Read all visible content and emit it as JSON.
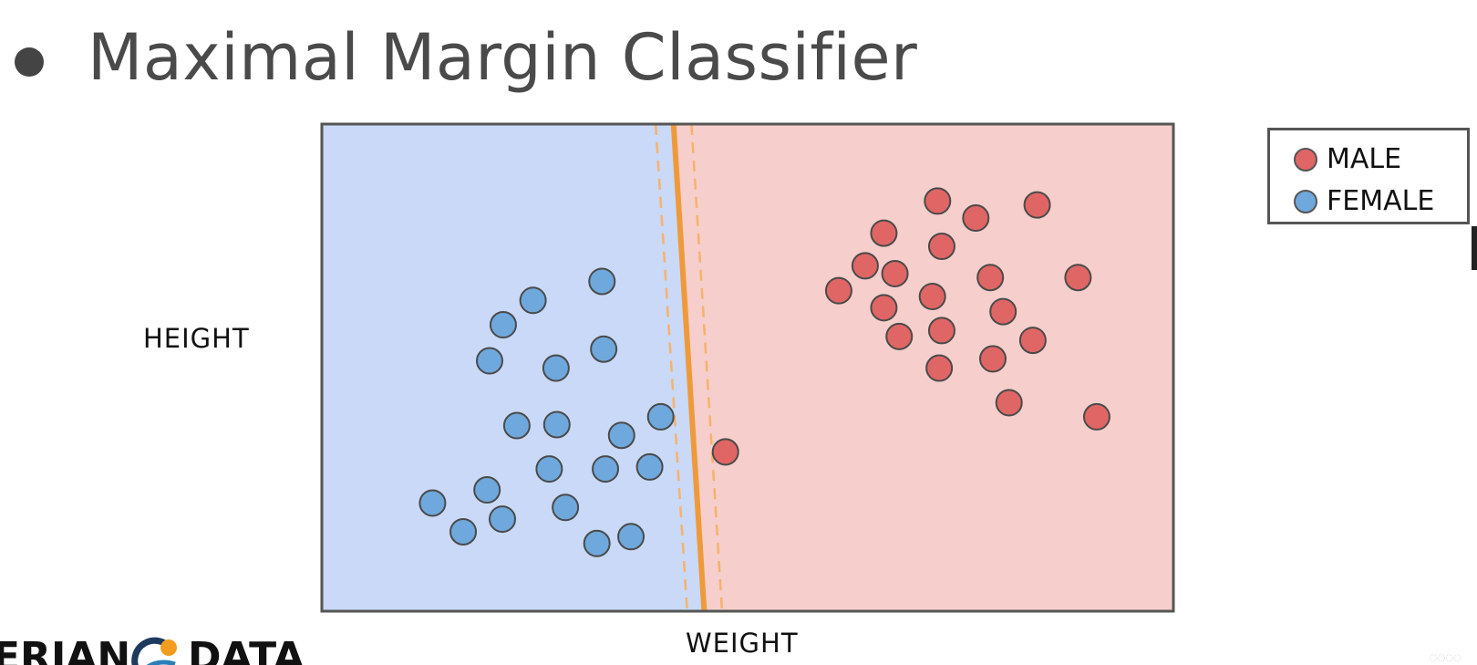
{
  "slide": {
    "title": "Maximal Margin Classifier"
  },
  "colors": {
    "female_region": "#c9d9f7",
    "male_region": "#f6cecb",
    "female_point": "#6fa8dc",
    "male_point": "#e06666",
    "boundary": "#ef9a3a",
    "margin": "#f6b26b",
    "frame": "#555555"
  },
  "legend": {
    "items": [
      {
        "label": "MALE",
        "color": "#e06666"
      },
      {
        "label": "FEMALE",
        "color": "#6fa8dc"
      }
    ]
  },
  "logo": {
    "left_text": "ERIAN",
    "right_text": "DATA",
    "icon": "globe-logo-icon"
  },
  "chart_data": {
    "type": "scatter",
    "title": "Maximal Margin Classifier",
    "xlabel": "WEIGHT",
    "ylabel": "HEIGHT",
    "xlim": [
      0,
      100
    ],
    "ylim": [
      0,
      100
    ],
    "grid": false,
    "legend_position": "top-right",
    "decision_boundary": {
      "x_at_top": 41.3,
      "x_at_bottom": 44.9
    },
    "margins": [
      {
        "x_at_top": 39.2,
        "x_at_bottom": 42.9
      },
      {
        "x_at_top": 43.4,
        "x_at_bottom": 47.0
      }
    ],
    "series": [
      {
        "name": "MALE",
        "points": [
          {
            "x": 72.3,
            "y": 84.2
          },
          {
            "x": 84.0,
            "y": 83.4
          },
          {
            "x": 76.8,
            "y": 80.7
          },
          {
            "x": 66.0,
            "y": 77.6
          },
          {
            "x": 72.8,
            "y": 74.9
          },
          {
            "x": 63.8,
            "y": 70.9
          },
          {
            "x": 67.3,
            "y": 69.3
          },
          {
            "x": 78.5,
            "y": 68.5
          },
          {
            "x": 88.8,
            "y": 68.5
          },
          {
            "x": 60.7,
            "y": 65.8
          },
          {
            "x": 71.7,
            "y": 64.6
          },
          {
            "x": 66.0,
            "y": 62.3
          },
          {
            "x": 80.0,
            "y": 61.5
          },
          {
            "x": 72.8,
            "y": 57.6
          },
          {
            "x": 67.8,
            "y": 56.4
          },
          {
            "x": 83.5,
            "y": 55.6
          },
          {
            "x": 78.8,
            "y": 51.8
          },
          {
            "x": 72.5,
            "y": 49.9
          },
          {
            "x": 80.7,
            "y": 42.8
          },
          {
            "x": 91.0,
            "y": 39.9
          },
          {
            "x": 47.4,
            "y": 32.7
          }
        ]
      },
      {
        "name": "FEMALE",
        "points": [
          {
            "x": 32.9,
            "y": 67.7
          },
          {
            "x": 24.8,
            "y": 63.8
          },
          {
            "x": 21.3,
            "y": 58.8
          },
          {
            "x": 33.1,
            "y": 53.8
          },
          {
            "x": 19.7,
            "y": 51.4
          },
          {
            "x": 27.5,
            "y": 49.9
          },
          {
            "x": 39.8,
            "y": 39.9
          },
          {
            "x": 22.9,
            "y": 38.1
          },
          {
            "x": 27.6,
            "y": 38.3
          },
          {
            "x": 35.2,
            "y": 36.1
          },
          {
            "x": 26.7,
            "y": 29.2
          },
          {
            "x": 33.3,
            "y": 29.2
          },
          {
            "x": 38.5,
            "y": 29.6
          },
          {
            "x": 19.4,
            "y": 24.9
          },
          {
            "x": 13.0,
            "y": 22.2
          },
          {
            "x": 28.6,
            "y": 21.3
          },
          {
            "x": 21.2,
            "y": 18.9
          },
          {
            "x": 16.6,
            "y": 16.3
          },
          {
            "x": 36.3,
            "y": 15.3
          },
          {
            "x": 32.3,
            "y": 13.9
          }
        ]
      }
    ]
  }
}
